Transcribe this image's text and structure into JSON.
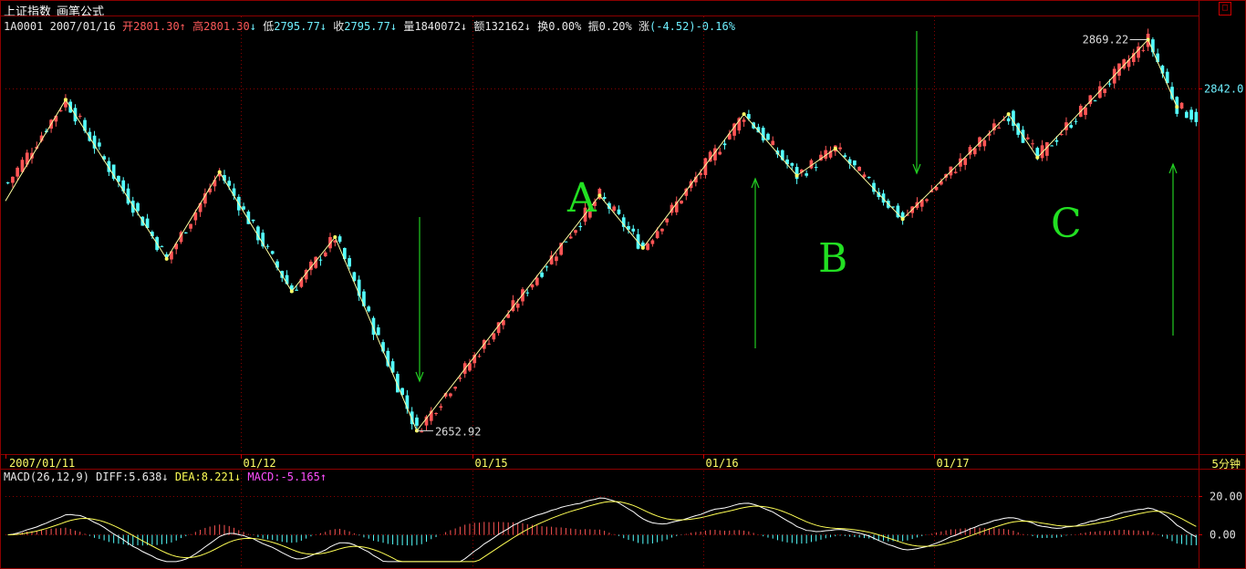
{
  "header": {
    "index_name": "上证指数",
    "formula_name": "画笔公式"
  },
  "quote": {
    "code": "1A0001",
    "date": "2007/01/16",
    "open_label": "开",
    "open_value": "2801.30",
    "open_arrow": "↑",
    "high_label": "高",
    "high_value": "2801.30",
    "high_arrow": "↓",
    "low_label": "低",
    "low_value": "2795.77",
    "low_arrow": "↓",
    "close_label": "收",
    "close_value": "2795.77",
    "close_arrow": "↓",
    "volume_label": "量",
    "volume_value": "1840072",
    "volume_arrow": "↓",
    "amount_label": "额",
    "amount_value": "132162",
    "amount_arrow": "↓",
    "turnover_label": "换",
    "turnover_value": "0.00%",
    "amplitude_label": "振",
    "amplitude_value": "0.20%",
    "change_label": "涨",
    "change_value": "(-4.52)-0.16%"
  },
  "period_label": "5分钟",
  "x_axis_labels": [
    {
      "text": "2007/01/11",
      "index": 0
    },
    {
      "text": "01/12",
      "index": 49
    },
    {
      "text": "01/15",
      "index": 97
    },
    {
      "text": "01/16",
      "index": 145
    },
    {
      "text": "01/17",
      "index": 193
    }
  ],
  "y_axis_labels": [
    {
      "text": "2842.0",
      "value": 2842.0
    }
  ],
  "peak_label": {
    "text": "2869.22",
    "value": 2869.22
  },
  "trough_label": {
    "text": "2652.92",
    "value": 2652.92
  },
  "annotations": [
    {
      "text": "A",
      "color": "#22e022"
    },
    {
      "text": "B",
      "color": "#22e022"
    },
    {
      "text": "C",
      "color": "#22e022"
    }
  ],
  "macd": {
    "title": "MACD(26,12,9)",
    "diff_label": "DIFF:",
    "diff_value": "5.638",
    "diff_arrow": "↓",
    "dea_label": "DEA:",
    "dea_value": "8.221",
    "dea_arrow": "↓",
    "macd_label": "MACD:",
    "macd_value": "-5.165",
    "macd_arrow": "↑",
    "axis_labels": [
      {
        "text": "20.00",
        "value": 20
      },
      {
        "text": "0.00",
        "value": 0
      }
    ]
  },
  "colors": {
    "up": "#ff5555",
    "down": "#54ffff",
    "grid": "#8b0000",
    "zigzag": "#ffffa0",
    "arrow": "#22cc22",
    "dea_line": "#ffff55",
    "diff_line": "#ffffff"
  },
  "chart_data": {
    "type": "candlestick",
    "symbol": "上证指数",
    "interval": "5分钟",
    "ylim": [
      2640,
      2876
    ],
    "zigzag_pivots": [
      {
        "i": 12,
        "value": 2836
      },
      {
        "i": 33,
        "value": 2748
      },
      {
        "i": 44,
        "value": 2796
      },
      {
        "i": 59,
        "value": 2730
      },
      {
        "i": 68,
        "value": 2760
      },
      {
        "i": 85,
        "value": 2652.92
      },
      {
        "i": 123,
        "value": 2783
      },
      {
        "i": 132,
        "value": 2754
      },
      {
        "i": 153,
        "value": 2828
      },
      {
        "i": 164,
        "value": 2794
      },
      {
        "i": 172,
        "value": 2809
      },
      {
        "i": 186,
        "value": 2770
      },
      {
        "i": 208,
        "value": 2828
      },
      {
        "i": 214,
        "value": 2804
      },
      {
        "i": 237,
        "value": 2869.22
      },
      {
        "i": 243,
        "value": 2832
      }
    ],
    "macd_histogram_ylim": [
      -15,
      25
    ]
  }
}
